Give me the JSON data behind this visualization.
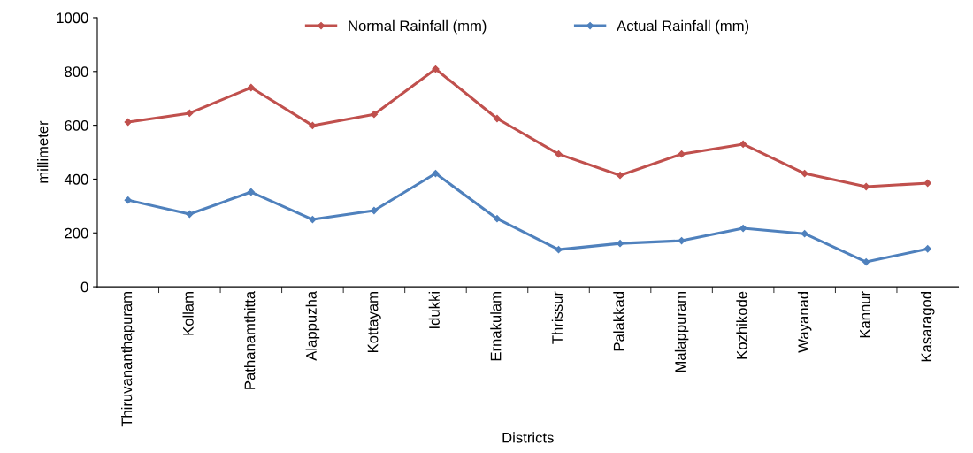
{
  "chart_data": {
    "type": "line",
    "xlabel": "Districts",
    "ylabel": "millimeter",
    "categories": [
      "Thiruvananthapuram",
      "Kollam",
      "Pathanamthitta",
      "Alappuzha",
      "Kottayam",
      "Idukki",
      "Ernakulam",
      "Thrissur",
      "Palakkad",
      "Malappuram",
      "Kozhikode",
      "Wayanad",
      "Kannur",
      "Kasaragod"
    ],
    "series": [
      {
        "name": "Normal Rainfall (mm)",
        "color": "#c0504d",
        "values": [
          612,
          645,
          740,
          599,
          641,
          809,
          625,
          493,
          414,
          493,
          530,
          421,
          372,
          385
        ]
      },
      {
        "name": "Actual Rainfall (mm)",
        "color": "#4f81bd",
        "values": [
          322,
          270,
          352,
          250,
          283,
          421,
          253,
          138,
          161,
          171,
          217,
          197,
          92,
          141
        ]
      }
    ],
    "ylim": [
      0,
      1000
    ],
    "yticks": [
      0,
      200,
      400,
      600,
      800,
      1000
    ],
    "legend": "top",
    "marker": "diamond",
    "line_style": "solid",
    "grid": false
  }
}
